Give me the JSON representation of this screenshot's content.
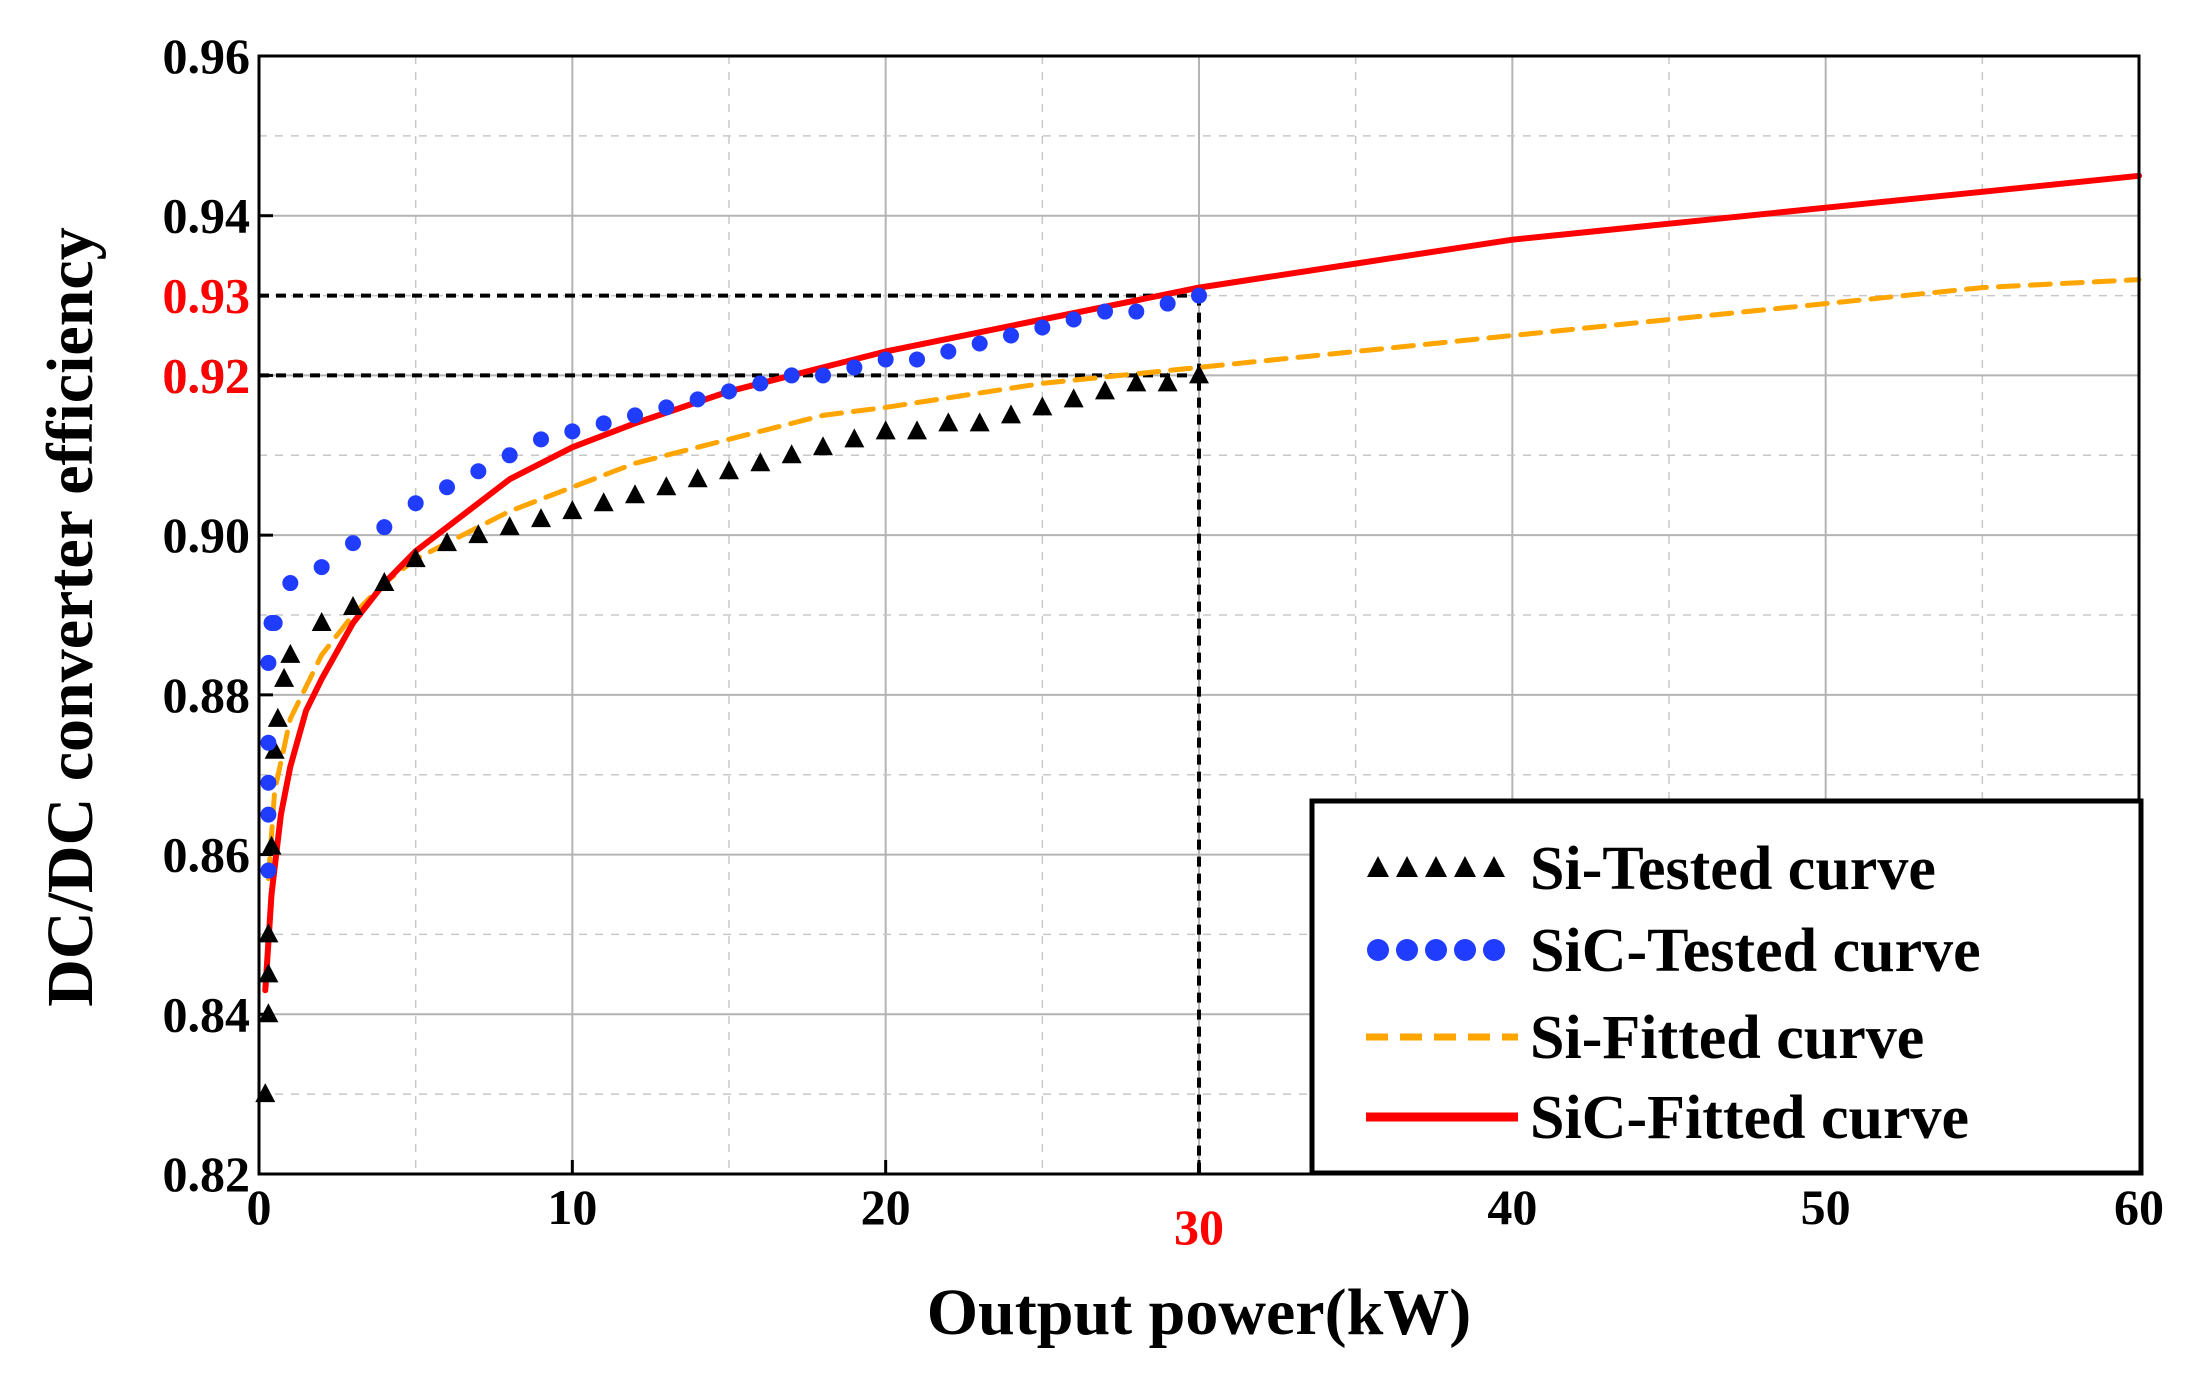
{
  "chart_data": {
    "type": "scatter",
    "title": "",
    "xlabel": "Output power(kW)",
    "ylabel": "DC/DC converter efficiency",
    "xlim": [
      0,
      60
    ],
    "ylim": [
      0.82,
      0.96
    ],
    "xticks": [
      "0",
      "10",
      "20",
      "30",
      "40",
      "50",
      "60"
    ],
    "yticks": [
      "0.82",
      "0.84",
      "0.86",
      "0.88",
      "0.90",
      "0.92",
      "0.94",
      "0.96"
    ],
    "highlighted": {
      "x": "30",
      "y": [
        "0.92",
        "0.93"
      ],
      "color": "#ff0000"
    },
    "grid": true,
    "legend_position": "bottom-right",
    "series": [
      {
        "name": "Si-Tested curve",
        "style": "markers-triangle",
        "color": "#000000",
        "x": [
          0.2,
          0.3,
          0.3,
          0.3,
          0.4,
          0.5,
          0.6,
          0.8,
          1,
          2,
          3,
          4,
          5,
          6,
          7,
          8,
          9,
          10,
          11,
          12,
          13,
          14,
          15,
          16,
          17,
          18,
          19,
          20,
          21,
          22,
          23,
          24,
          25,
          26,
          27,
          28,
          29,
          30
        ],
        "y": [
          0.83,
          0.84,
          0.845,
          0.85,
          0.861,
          0.873,
          0.877,
          0.882,
          0.885,
          0.889,
          0.891,
          0.894,
          0.897,
          0.899,
          0.9,
          0.901,
          0.902,
          0.903,
          0.904,
          0.905,
          0.906,
          0.907,
          0.908,
          0.909,
          0.91,
          0.911,
          0.912,
          0.913,
          0.913,
          0.914,
          0.914,
          0.915,
          0.916,
          0.917,
          0.918,
          0.919,
          0.919,
          0.92
        ]
      },
      {
        "name": "SiC-Tested curve",
        "style": "markers-circle",
        "color": "#1f3cff",
        "x": [
          0.3,
          0.3,
          0.3,
          0.3,
          0.3,
          0.4,
          0.5,
          1,
          2,
          3,
          4,
          5,
          6,
          7,
          8,
          9,
          10,
          11,
          12,
          13,
          14,
          15,
          16,
          17,
          18,
          19,
          20,
          21,
          22,
          23,
          24,
          25,
          26,
          27,
          28,
          29,
          30
        ],
        "y": [
          0.858,
          0.865,
          0.869,
          0.874,
          0.884,
          0.889,
          0.889,
          0.894,
          0.896,
          0.899,
          0.901,
          0.904,
          0.906,
          0.908,
          0.91,
          0.912,
          0.913,
          0.914,
          0.915,
          0.916,
          0.917,
          0.918,
          0.919,
          0.92,
          0.92,
          0.921,
          0.922,
          0.922,
          0.923,
          0.924,
          0.925,
          0.926,
          0.927,
          0.928,
          0.928,
          0.929,
          0.93
        ]
      },
      {
        "name": "Si-Fitted curve",
        "style": "dashed-line",
        "color": "#ffa500",
        "x": [
          0.3,
          0.5,
          1,
          2,
          3,
          4,
          5,
          6,
          8,
          10,
          12,
          15,
          18,
          20,
          25,
          30,
          35,
          40,
          45,
          50,
          55,
          60
        ],
        "y": [
          0.857,
          0.868,
          0.877,
          0.885,
          0.89,
          0.894,
          0.897,
          0.899,
          0.903,
          0.906,
          0.909,
          0.912,
          0.915,
          0.916,
          0.919,
          0.921,
          0.923,
          0.925,
          0.927,
          0.929,
          0.931,
          0.932
        ]
      },
      {
        "name": "SiC-Fitted curve",
        "style": "solid-line",
        "color": "#ff0000",
        "x": [
          0.2,
          0.4,
          0.7,
          1,
          1.5,
          2,
          3,
          4,
          5,
          6,
          8,
          10,
          12,
          15,
          18,
          20,
          25,
          30,
          35,
          40,
          45,
          50,
          55,
          60
        ],
        "y": [
          0.843,
          0.855,
          0.865,
          0.871,
          0.878,
          0.882,
          0.889,
          0.894,
          0.898,
          0.901,
          0.907,
          0.911,
          0.914,
          0.918,
          0.921,
          0.923,
          0.927,
          0.931,
          0.934,
          0.937,
          0.939,
          0.941,
          0.943,
          0.945
        ]
      }
    ]
  }
}
